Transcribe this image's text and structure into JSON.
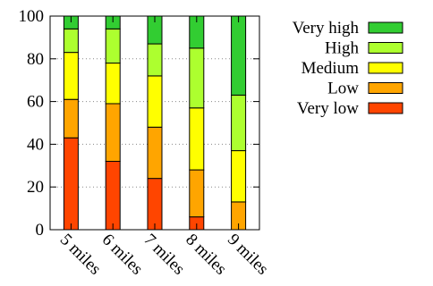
{
  "chart_data": {
    "type": "bar",
    "stacked": true,
    "categories": [
      "5 miles",
      "6 miles",
      "7 miles",
      "8 miles",
      "9 miles"
    ],
    "series": [
      {
        "name": "Very low",
        "color": "#ff4500",
        "values": [
          43,
          32,
          24,
          6,
          0
        ]
      },
      {
        "name": "Low",
        "color": "#ffa500",
        "values": [
          18,
          27,
          24,
          22,
          13
        ]
      },
      {
        "name": "Medium",
        "color": "#ffff00",
        "values": [
          22,
          19,
          24,
          29,
          24
        ]
      },
      {
        "name": "High",
        "color": "#adff2f",
        "values": [
          11,
          16,
          15,
          28,
          26
        ]
      },
      {
        "name": "Very high",
        "color": "#32cd32",
        "values": [
          6,
          6,
          13,
          15,
          37
        ]
      }
    ],
    "ylim": [
      0,
      100
    ],
    "yticks": [
      "0",
      "20",
      "40",
      "60",
      "80",
      "100"
    ],
    "grid": "horizontal dotted",
    "legend_position": "outside-right",
    "legend_order": [
      "Very high",
      "High",
      "Medium",
      "Low",
      "Very low"
    ]
  }
}
